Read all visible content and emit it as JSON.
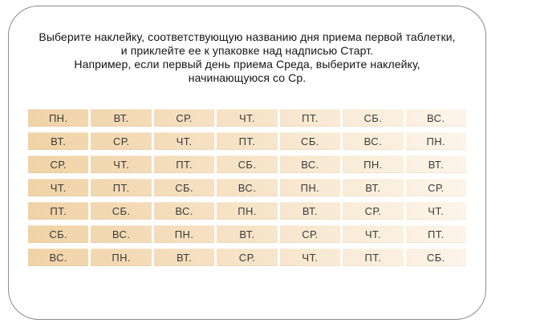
{
  "page": {
    "background": "#ffffff"
  },
  "card": {
    "background": "#ffffff",
    "border_color": "#8a8a8a"
  },
  "instructions": {
    "lines": [
      "Выберите наклейку, соответствующую названию дня приема первой таблетки,",
      "и приклейте ее к упаковке над надписью Старт.",
      "Например, если первый день приема Среда, выберите наклейку,",
      "начинающуюся со Ср."
    ]
  },
  "table": {
    "gradient_from": "#f0d2a5",
    "gradient_to": "#fdf5ea",
    "text_color": "#3a3a3a",
    "rows": [
      [
        "ПН.",
        "ВТ.",
        "СР.",
        "ЧТ.",
        "ПТ.",
        "СБ.",
        "ВС."
      ],
      [
        "ВТ.",
        "СР.",
        "ЧТ.",
        "ПТ.",
        "СБ.",
        "ВС.",
        "ПН."
      ],
      [
        "СР.",
        "ЧТ.",
        "ПТ.",
        "СБ.",
        "ВС.",
        "ПН.",
        "ВТ."
      ],
      [
        "ЧТ.",
        "ПТ.",
        "СБ.",
        "ВС.",
        "ПН.",
        "ВТ.",
        "СР."
      ],
      [
        "ПТ.",
        "СБ.",
        "ВС.",
        "ПН.",
        "ВТ.",
        "СР.",
        "ЧТ."
      ],
      [
        "СБ.",
        "ВС.",
        "ПН.",
        "ВТ.",
        "СР.",
        "ЧТ.",
        "ПТ."
      ],
      [
        "ВС.",
        "ПН.",
        "ВТ.",
        "СР.",
        "ЧТ.",
        "ПТ.",
        "СБ."
      ]
    ]
  }
}
